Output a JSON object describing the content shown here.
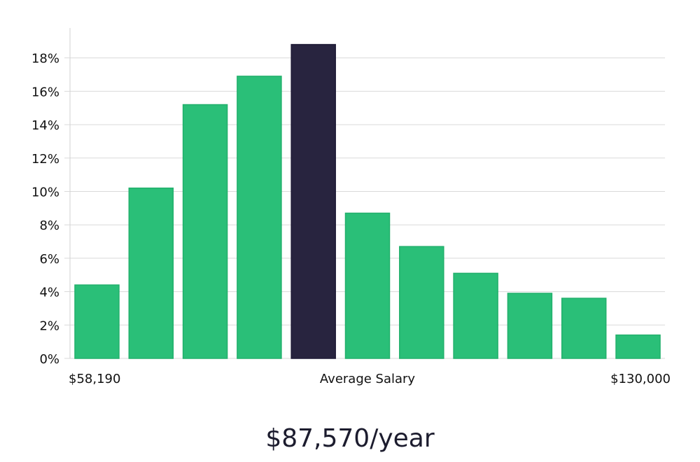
{
  "chart_data": {
    "type": "bar",
    "categories": [
      "b1",
      "b2",
      "b3",
      "b4",
      "b5",
      "b6",
      "b7",
      "b8",
      "b9",
      "b10",
      "b11"
    ],
    "values": [
      4.4,
      10.2,
      15.2,
      16.9,
      18.8,
      8.7,
      6.7,
      5.1,
      3.9,
      3.6,
      1.4
    ],
    "highlight_index": 4,
    "ylim": [
      0,
      19.5
    ],
    "yticks": [
      0,
      2,
      4,
      6,
      8,
      10,
      12,
      14,
      16,
      18
    ],
    "ytick_labels": [
      "0%",
      "2%",
      "4%",
      "6%",
      "8%",
      "10%",
      "12%",
      "14%",
      "16%",
      "18%"
    ],
    "grid": true,
    "x_left_label": "$58,190",
    "x_center_label": "Average Salary",
    "x_right_label": "$130,000",
    "colors": {
      "bar": "#2abf78",
      "highlight": "#28243f",
      "grid": "#d9d9d9"
    }
  },
  "headline": "$87,570/year"
}
